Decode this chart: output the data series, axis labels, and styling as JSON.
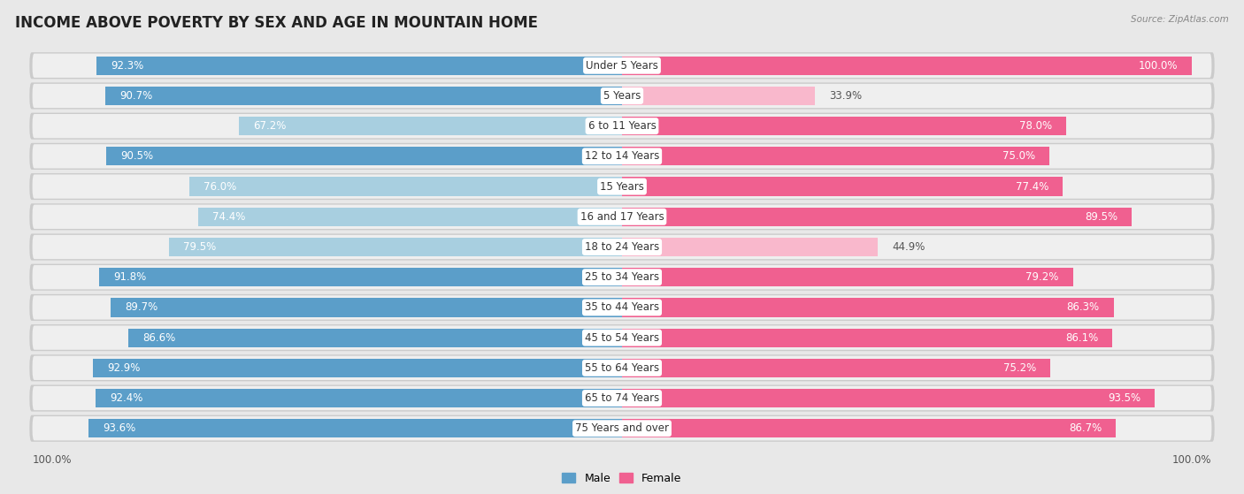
{
  "title": "INCOME ABOVE POVERTY BY SEX AND AGE IN MOUNTAIN HOME",
  "source": "Source: ZipAtlas.com",
  "categories": [
    "Under 5 Years",
    "5 Years",
    "6 to 11 Years",
    "12 to 14 Years",
    "15 Years",
    "16 and 17 Years",
    "18 to 24 Years",
    "25 to 34 Years",
    "35 to 44 Years",
    "45 to 54 Years",
    "55 to 64 Years",
    "65 to 74 Years",
    "75 Years and over"
  ],
  "male_values": [
    92.3,
    90.7,
    67.2,
    90.5,
    76.0,
    74.4,
    79.5,
    91.8,
    89.7,
    86.6,
    92.9,
    92.4,
    93.6
  ],
  "female_values": [
    100.0,
    33.9,
    78.0,
    75.0,
    77.4,
    89.5,
    44.9,
    79.2,
    86.3,
    86.1,
    75.2,
    93.5,
    86.7
  ],
  "male_color_dark": "#5b9ec9",
  "male_color_light": "#a8cfe0",
  "female_color_dark": "#f06090",
  "female_color_light": "#f9b8cc",
  "bg_color": "#e8e8e8",
  "row_bg_color": "#d8d8d8",
  "title_fontsize": 12,
  "label_fontsize": 8.5,
  "value_fontsize": 8.5,
  "bar_height": 0.62,
  "male_dark_threshold": 80,
  "female_dark_threshold": 60
}
